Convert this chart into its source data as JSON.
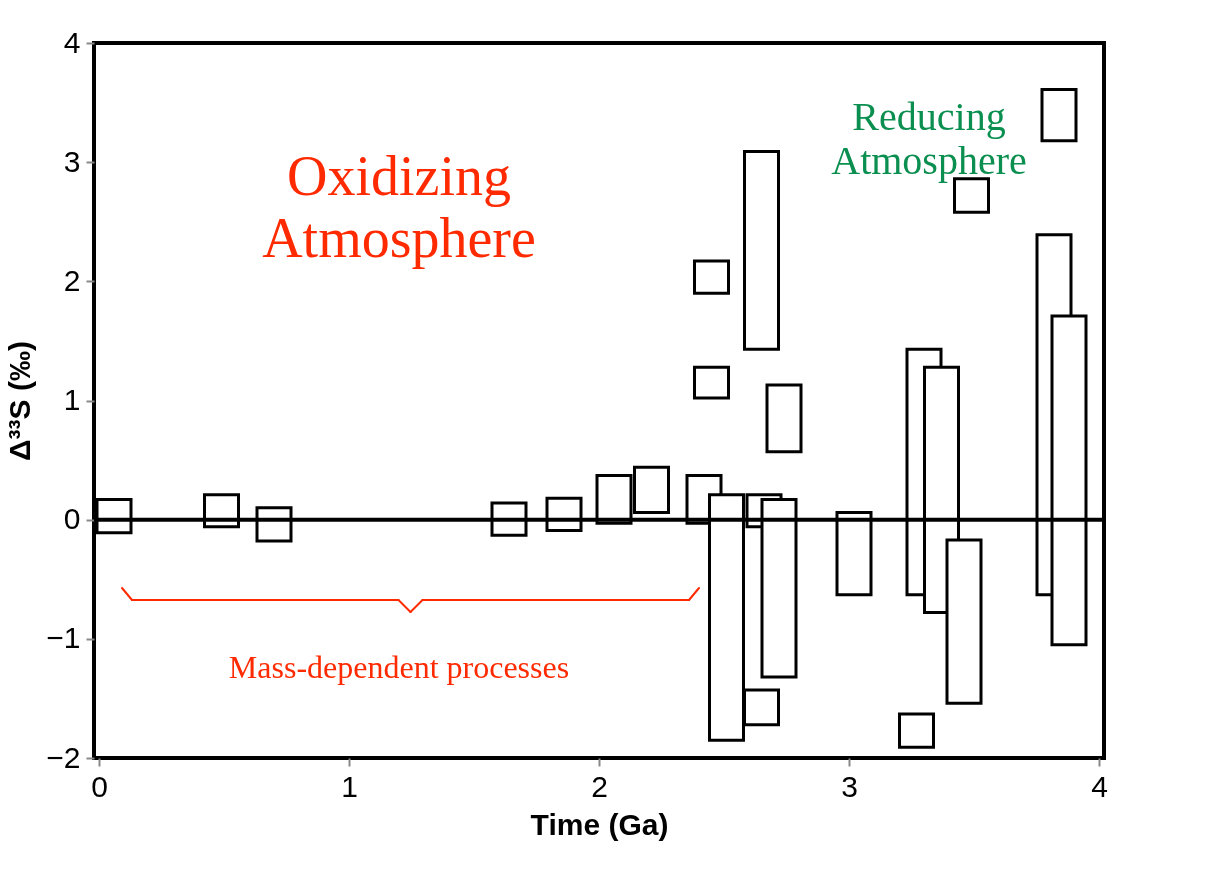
{
  "chart_data": {
    "type": "bar",
    "xlabel": "Time (Ga)",
    "ylabel": "Δ³³S (‰)",
    "series": [
      {
        "color": "#000000",
        "x": [
          0.06,
          0.49,
          0.7,
          1.64,
          1.86,
          2.06,
          2.21,
          2.42,
          2.45,
          2.51,
          2.65,
          2.66,
          2.72,
          2.74,
          3.02,
          3.27,
          3.3,
          3.37,
          3.46,
          3.49,
          3.82,
          3.84,
          3.88
        ],
        "base": [
          -0.11,
          -0.06,
          -0.18,
          -0.13,
          -0.09,
          -0.03,
          0.06,
          -0.03,
          1.9,
          -1.85,
          1.43,
          -0.06,
          -1.32,
          0.57,
          -0.63,
          -1.91,
          -0.63,
          -0.78,
          -1.54,
          2.58,
          -0.63,
          3.18,
          -1.05
        ],
        "values": [
          0.28,
          0.27,
          0.28,
          0.27,
          0.27,
          0.4,
          0.38,
          0.4,
          0.27,
          2.06,
          1.66,
          0.27,
          1.49,
          0.56,
          0.69,
          0.28,
          2.06,
          2.06,
          1.37,
          0.28,
          3.02,
          0.43,
          2.76
        ]
      },
      {
        "color": "#000000",
        "x": [
          2.45,
          2.65
        ],
        "base": [
          1.02,
          -1.72
        ],
        "values": [
          0.26,
          0.29
        ]
      }
    ],
    "xlim": [
      0,
      4
    ],
    "xticks": [
      0,
      1,
      2,
      3,
      4
    ],
    "ylim": [
      -2,
      4
    ],
    "yticks": [
      -2,
      -1,
      0,
      1,
      2,
      3,
      4
    ],
    "ref_lines": [
      {
        "axis": "y",
        "value": 0,
        "label": null,
        "color": "#000000"
      }
    ],
    "annotations": [
      "Oxidizing\nAtmosphere",
      "Reducing\nAtmosphere",
      "Mass-dependent processes"
    ],
    "grid": false
  }
}
